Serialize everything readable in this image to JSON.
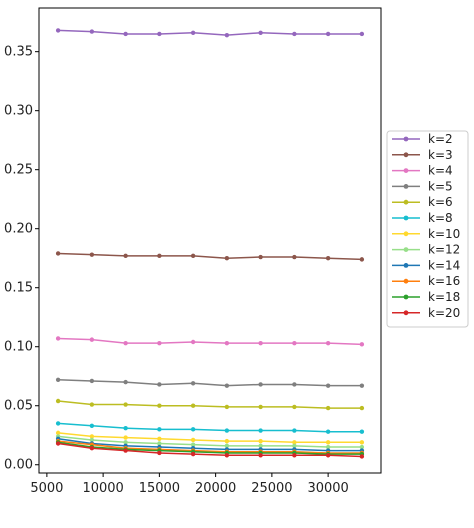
{
  "chart_data": {
    "type": "line",
    "title": "",
    "xlabel": "",
    "ylabel": "",
    "xlim": [
      4300,
      34700
    ],
    "ylim": [
      -0.007,
      0.387
    ],
    "xticks": [
      5000,
      10000,
      15000,
      20000,
      25000,
      30000
    ],
    "yticks": [
      0.0,
      0.05,
      0.1,
      0.15,
      0.2,
      0.25,
      0.3,
      0.35
    ],
    "xtick_labels": [
      "5000",
      "10000",
      "15000",
      "20000",
      "25000",
      "30000"
    ],
    "ytick_labels": [
      "0.00",
      "0.05",
      "0.10",
      "0.15",
      "0.20",
      "0.25",
      "0.30",
      "0.35"
    ],
    "grid": false,
    "legend_position": "outside-right",
    "x": [
      6000,
      9000,
      12000,
      15000,
      18000,
      21000,
      24000,
      27000,
      30000,
      33000
    ],
    "series": [
      {
        "name": "k=2",
        "color": "#9467bd",
        "values": [
          0.368,
          0.367,
          0.365,
          0.365,
          0.366,
          0.364,
          0.366,
          0.365,
          0.365,
          0.365
        ]
      },
      {
        "name": "k=3",
        "color": "#8c564b",
        "values": [
          0.179,
          0.178,
          0.177,
          0.177,
          0.177,
          0.175,
          0.176,
          0.176,
          0.175,
          0.174
        ]
      },
      {
        "name": "k=4",
        "color": "#e377c2",
        "values": [
          0.107,
          0.106,
          0.103,
          0.103,
          0.104,
          0.103,
          0.103,
          0.103,
          0.103,
          0.102
        ]
      },
      {
        "name": "k=5",
        "color": "#7f7f7f",
        "values": [
          0.072,
          0.071,
          0.07,
          0.068,
          0.069,
          0.067,
          0.068,
          0.068,
          0.067,
          0.067
        ]
      },
      {
        "name": "k=6",
        "color": "#bcbd22",
        "values": [
          0.054,
          0.051,
          0.051,
          0.05,
          0.05,
          0.049,
          0.049,
          0.049,
          0.048,
          0.048
        ]
      },
      {
        "name": "k=8",
        "color": "#17becf",
        "values": [
          0.035,
          0.033,
          0.031,
          0.03,
          0.03,
          0.029,
          0.029,
          0.029,
          0.028,
          0.028
        ]
      },
      {
        "name": "k=10",
        "color": "#ffd92f",
        "values": [
          0.027,
          0.024,
          0.023,
          0.022,
          0.021,
          0.02,
          0.02,
          0.019,
          0.019,
          0.019
        ]
      },
      {
        "name": "k=12",
        "color": "#98df8a",
        "values": [
          0.024,
          0.021,
          0.019,
          0.018,
          0.017,
          0.016,
          0.016,
          0.016,
          0.015,
          0.015
        ]
      },
      {
        "name": "k=14",
        "color": "#1f77b4",
        "values": [
          0.022,
          0.018,
          0.016,
          0.015,
          0.014,
          0.013,
          0.013,
          0.013,
          0.012,
          0.012
        ]
      },
      {
        "name": "k=16",
        "color": "#ff7f0e",
        "values": [
          0.02,
          0.017,
          0.014,
          0.013,
          0.012,
          0.011,
          0.011,
          0.011,
          0.01,
          0.01
        ]
      },
      {
        "name": "k=18",
        "color": "#2ca02c",
        "values": [
          0.019,
          0.015,
          0.013,
          0.012,
          0.011,
          0.01,
          0.01,
          0.01,
          0.009,
          0.009
        ]
      },
      {
        "name": "k=20",
        "color": "#d62728",
        "values": [
          0.018,
          0.014,
          0.012,
          0.01,
          0.009,
          0.008,
          0.008,
          0.008,
          0.008,
          0.007
        ]
      }
    ]
  }
}
